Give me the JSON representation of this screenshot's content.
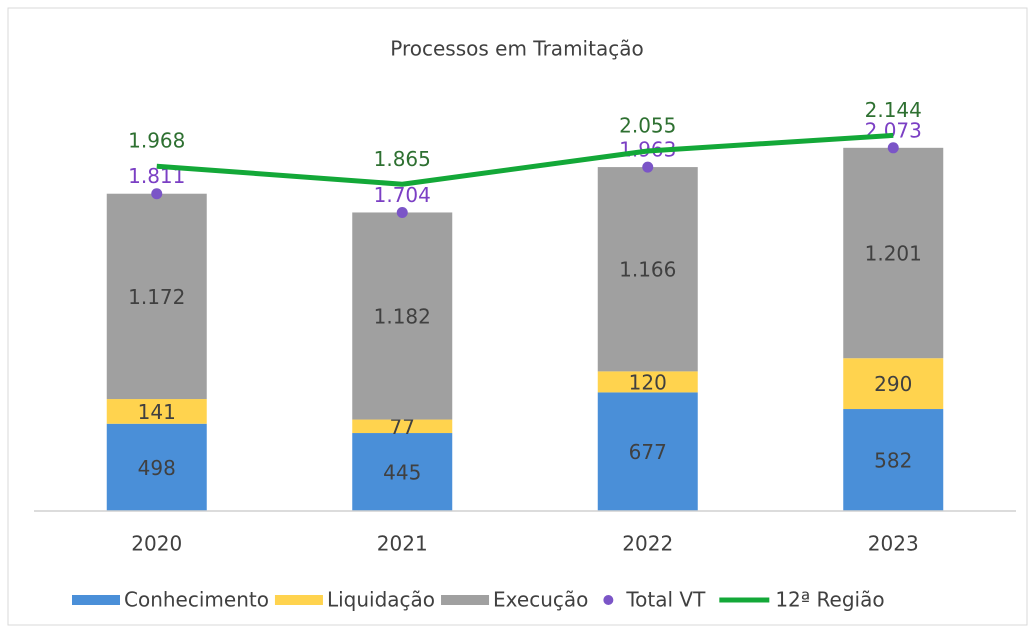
{
  "chart_data": {
    "type": "bar",
    "stacked": true,
    "title": "Processos em Tramitação",
    "categories": [
      "2020",
      "2021",
      "2022",
      "2023"
    ],
    "ylim": [
      0,
      2500
    ],
    "series": [
      {
        "name": "Conhecimento",
        "type": "bar",
        "color": "#4a8fd8",
        "label_color": "#404040",
        "values": [
          498,
          445,
          677,
          582
        ]
      },
      {
        "name": "Liquidação",
        "type": "bar",
        "color": "#ffd34e",
        "label_color": "#404040",
        "values": [
          141,
          77,
          120,
          290
        ]
      },
      {
        "name": "Execução",
        "type": "bar",
        "color": "#a0a0a0",
        "label_color": "#404040",
        "values": [
          1172,
          1182,
          1166,
          1201
        ],
        "value_labels": [
          "1.172",
          "1.182",
          "1.166",
          "1.201"
        ]
      },
      {
        "name": "Total VT",
        "type": "scatter",
        "color": "#7b55c7",
        "label_color": "#7b3fc4",
        "values": [
          1811,
          1704,
          1963,
          2073
        ],
        "value_labels": [
          "1.811",
          "1.704",
          "1.963",
          "2.073"
        ]
      },
      {
        "name": "12ª Região",
        "type": "line",
        "color": "#13a838",
        "label_color": "#2e7031",
        "values": [
          1968,
          1865,
          2055,
          2144
        ],
        "value_labels": [
          "1.968",
          "1.865",
          "2.055",
          "2.144"
        ]
      }
    ],
    "legend": "bottom"
  }
}
